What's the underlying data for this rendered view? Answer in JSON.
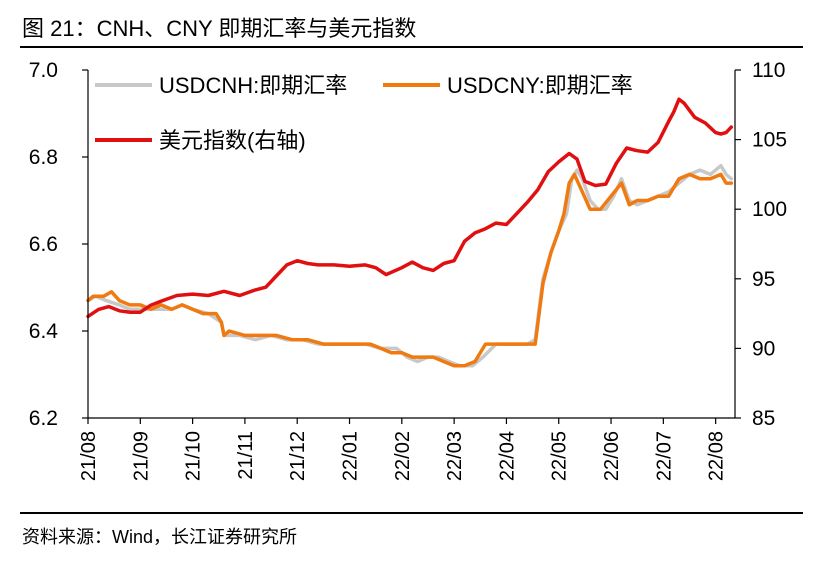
{
  "figure": {
    "title": "图  21：CNH、CNY 即期汇率与美元指数",
    "source": "资料来源：Wind，长江证券研究所"
  },
  "chart_data": {
    "type": "line",
    "x_categories": [
      "21/08",
      "21/09",
      "21/10",
      "21/11",
      "21/12",
      "22/01",
      "22/02",
      "22/03",
      "22/04",
      "22/05",
      "22/06",
      "22/07",
      "22/08"
    ],
    "y_left": {
      "min": 6.2,
      "max": 7.0,
      "ticks": [
        "7.0",
        "6.8",
        "6.6",
        "6.4",
        "6.2"
      ]
    },
    "y_right": {
      "min": 85,
      "max": 110,
      "ticks": [
        "110",
        "105",
        "100",
        "95",
        "90",
        "85"
      ]
    },
    "grid": false,
    "legend_position": "top-left",
    "series": [
      {
        "name": "USDCNH:即期汇率",
        "axis": "left",
        "color": "#c8c8c8",
        "points": [
          [
            0.0,
            6.47
          ],
          [
            0.15,
            6.48
          ],
          [
            0.35,
            6.47
          ],
          [
            0.6,
            6.46
          ],
          [
            0.8,
            6.45
          ],
          [
            1.0,
            6.45
          ],
          [
            1.3,
            6.45
          ],
          [
            1.6,
            6.45
          ],
          [
            1.8,
            6.46
          ],
          [
            2.0,
            6.45
          ],
          [
            2.3,
            6.44
          ],
          [
            2.55,
            6.42
          ],
          [
            2.6,
            6.39
          ],
          [
            2.9,
            6.39
          ],
          [
            3.2,
            6.38
          ],
          [
            3.5,
            6.39
          ],
          [
            3.8,
            6.38
          ],
          [
            4.1,
            6.38
          ],
          [
            4.4,
            6.37
          ],
          [
            4.7,
            6.37
          ],
          [
            5.0,
            6.37
          ],
          [
            5.3,
            6.37
          ],
          [
            5.6,
            6.36
          ],
          [
            5.9,
            6.36
          ],
          [
            6.1,
            6.34
          ],
          [
            6.3,
            6.33
          ],
          [
            6.5,
            6.34
          ],
          [
            6.7,
            6.34
          ],
          [
            6.9,
            6.33
          ],
          [
            7.1,
            6.32
          ],
          [
            7.35,
            6.32
          ],
          [
            7.55,
            6.34
          ],
          [
            7.8,
            6.37
          ],
          [
            8.0,
            6.37
          ],
          [
            8.2,
            6.37
          ],
          [
            8.4,
            6.37
          ],
          [
            8.55,
            6.38
          ],
          [
            8.7,
            6.52
          ],
          [
            8.85,
            6.58
          ],
          [
            9.0,
            6.63
          ],
          [
            9.15,
            6.67
          ],
          [
            9.25,
            6.75
          ],
          [
            9.35,
            6.77
          ],
          [
            9.45,
            6.75
          ],
          [
            9.6,
            6.7
          ],
          [
            9.75,
            6.68
          ],
          [
            9.9,
            6.68
          ],
          [
            10.05,
            6.71
          ],
          [
            10.2,
            6.75
          ],
          [
            10.35,
            6.7
          ],
          [
            10.5,
            6.69
          ],
          [
            10.7,
            6.7
          ],
          [
            10.9,
            6.71
          ],
          [
            11.1,
            6.72
          ],
          [
            11.3,
            6.74
          ],
          [
            11.5,
            6.76
          ],
          [
            11.7,
            6.77
          ],
          [
            11.9,
            6.76
          ],
          [
            12.1,
            6.78
          ],
          [
            12.2,
            6.76
          ],
          [
            12.3,
            6.75
          ]
        ]
      },
      {
        "name": "USDCNY:即期汇率",
        "axis": "left",
        "color": "#f07a10",
        "points": [
          [
            0.0,
            6.47
          ],
          [
            0.1,
            6.48
          ],
          [
            0.3,
            6.48
          ],
          [
            0.45,
            6.49
          ],
          [
            0.6,
            6.47
          ],
          [
            0.8,
            6.46
          ],
          [
            1.0,
            6.46
          ],
          [
            1.2,
            6.45
          ],
          [
            1.4,
            6.46
          ],
          [
            1.6,
            6.45
          ],
          [
            1.8,
            6.46
          ],
          [
            2.0,
            6.45
          ],
          [
            2.2,
            6.44
          ],
          [
            2.45,
            6.44
          ],
          [
            2.55,
            6.42
          ],
          [
            2.6,
            6.39
          ],
          [
            2.7,
            6.4
          ],
          [
            3.0,
            6.39
          ],
          [
            3.3,
            6.39
          ],
          [
            3.6,
            6.39
          ],
          [
            3.9,
            6.38
          ],
          [
            4.2,
            6.38
          ],
          [
            4.5,
            6.37
          ],
          [
            4.8,
            6.37
          ],
          [
            5.1,
            6.37
          ],
          [
            5.4,
            6.37
          ],
          [
            5.6,
            6.36
          ],
          [
            5.8,
            6.35
          ],
          [
            6.0,
            6.35
          ],
          [
            6.2,
            6.34
          ],
          [
            6.4,
            6.34
          ],
          [
            6.6,
            6.34
          ],
          [
            6.8,
            6.33
          ],
          [
            7.0,
            6.32
          ],
          [
            7.2,
            6.32
          ],
          [
            7.4,
            6.33
          ],
          [
            7.6,
            6.37
          ],
          [
            7.8,
            6.37
          ],
          [
            8.0,
            6.37
          ],
          [
            8.2,
            6.37
          ],
          [
            8.4,
            6.37
          ],
          [
            8.55,
            6.37
          ],
          [
            8.7,
            6.51
          ],
          [
            8.85,
            6.58
          ],
          [
            9.0,
            6.63
          ],
          [
            9.1,
            6.67
          ],
          [
            9.2,
            6.74
          ],
          [
            9.3,
            6.76
          ],
          [
            9.45,
            6.72
          ],
          [
            9.6,
            6.68
          ],
          [
            9.8,
            6.68
          ],
          [
            10.0,
            6.71
          ],
          [
            10.2,
            6.74
          ],
          [
            10.35,
            6.69
          ],
          [
            10.5,
            6.7
          ],
          [
            10.7,
            6.7
          ],
          [
            10.9,
            6.71
          ],
          [
            11.1,
            6.71
          ],
          [
            11.3,
            6.75
          ],
          [
            11.5,
            6.76
          ],
          [
            11.7,
            6.75
          ],
          [
            11.9,
            6.75
          ],
          [
            12.1,
            6.76
          ],
          [
            12.2,
            6.74
          ],
          [
            12.3,
            6.74
          ]
        ]
      },
      {
        "name": "美元指数(右轴)",
        "axis": "right",
        "color": "#e01010",
        "points": [
          [
            0.0,
            92.3
          ],
          [
            0.2,
            92.8
          ],
          [
            0.4,
            93.0
          ],
          [
            0.6,
            92.7
          ],
          [
            0.8,
            92.6
          ],
          [
            1.0,
            92.6
          ],
          [
            1.2,
            93.1
          ],
          [
            1.4,
            93.4
          ],
          [
            1.7,
            93.8
          ],
          [
            2.0,
            93.9
          ],
          [
            2.3,
            93.8
          ],
          [
            2.6,
            94.1
          ],
          [
            2.9,
            93.8
          ],
          [
            3.2,
            94.2
          ],
          [
            3.4,
            94.4
          ],
          [
            3.6,
            95.2
          ],
          [
            3.8,
            96.0
          ],
          [
            4.0,
            96.3
          ],
          [
            4.2,
            96.1
          ],
          [
            4.4,
            96.0
          ],
          [
            4.7,
            96.0
          ],
          [
            5.0,
            95.9
          ],
          [
            5.3,
            96.0
          ],
          [
            5.5,
            95.8
          ],
          [
            5.7,
            95.3
          ],
          [
            6.0,
            95.8
          ],
          [
            6.2,
            96.2
          ],
          [
            6.4,
            95.8
          ],
          [
            6.6,
            95.6
          ],
          [
            6.8,
            96.1
          ],
          [
            7.0,
            96.3
          ],
          [
            7.2,
            97.7
          ],
          [
            7.4,
            98.3
          ],
          [
            7.6,
            98.6
          ],
          [
            7.8,
            99.0
          ],
          [
            8.0,
            98.9
          ],
          [
            8.2,
            99.7
          ],
          [
            8.4,
            100.5
          ],
          [
            8.6,
            101.4
          ],
          [
            8.8,
            102.7
          ],
          [
            9.0,
            103.4
          ],
          [
            9.2,
            104.0
          ],
          [
            9.35,
            103.6
          ],
          [
            9.5,
            102.0
          ],
          [
            9.7,
            101.7
          ],
          [
            9.9,
            101.8
          ],
          [
            10.1,
            103.3
          ],
          [
            10.3,
            104.4
          ],
          [
            10.5,
            104.2
          ],
          [
            10.7,
            104.1
          ],
          [
            10.9,
            104.8
          ],
          [
            11.1,
            106.3
          ],
          [
            11.2,
            107.0
          ],
          [
            11.3,
            107.9
          ],
          [
            11.4,
            107.6
          ],
          [
            11.6,
            106.6
          ],
          [
            11.8,
            106.2
          ],
          [
            12.0,
            105.5
          ],
          [
            12.1,
            105.4
          ],
          [
            12.2,
            105.5
          ],
          [
            12.3,
            105.9
          ]
        ]
      }
    ]
  }
}
